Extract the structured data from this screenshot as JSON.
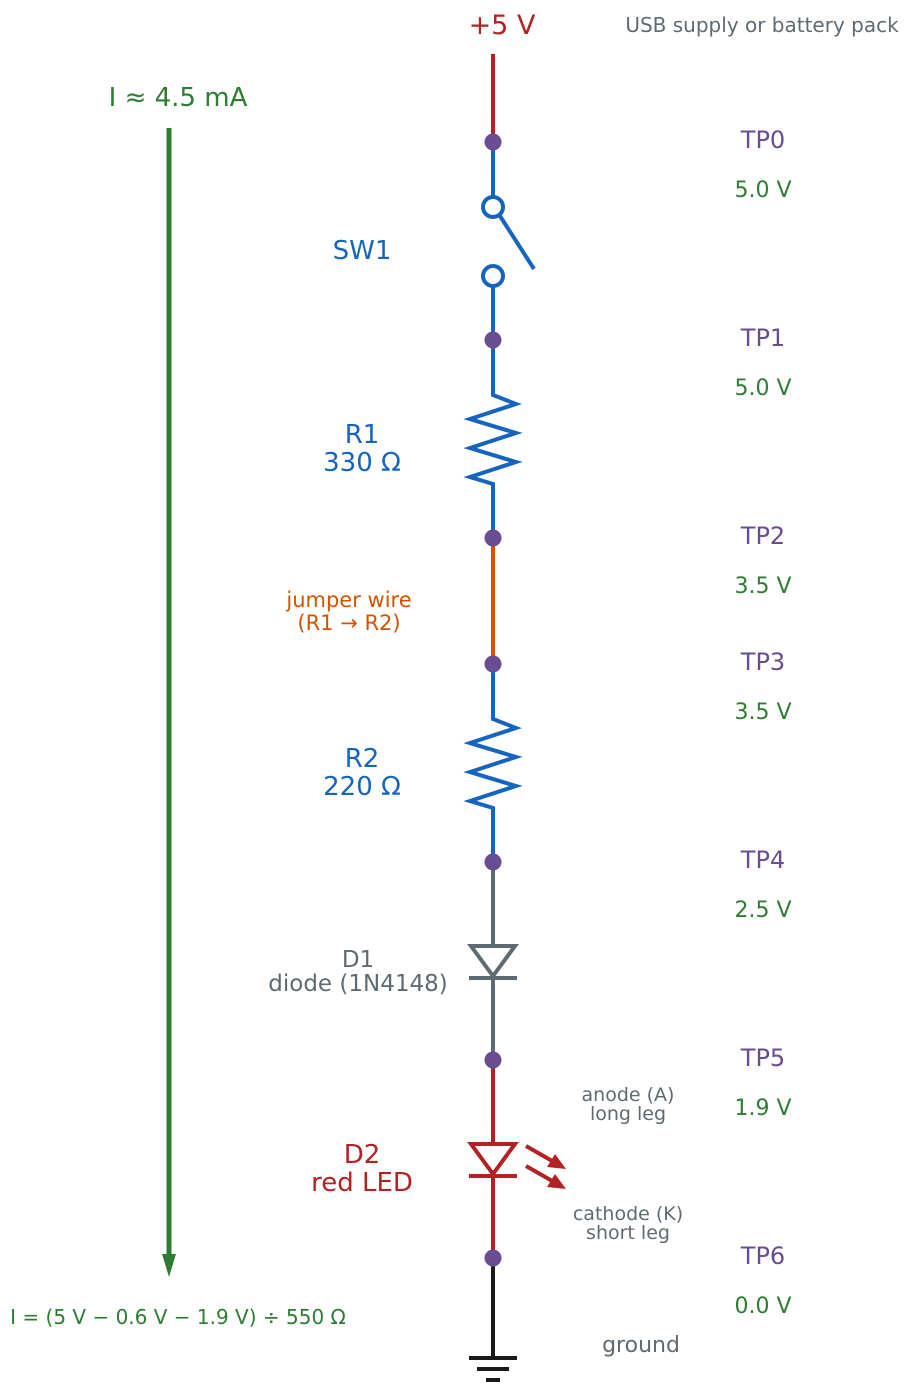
{
  "supply": {
    "label": "+5 V",
    "note": "USB supply or battery pack"
  },
  "current": {
    "label": "I ≈ 4.5 mA",
    "formula": "I = (5 V − 0.6 V − 1.9 V) ÷ 550 Ω"
  },
  "components": {
    "sw1": {
      "name": "SW1"
    },
    "r1": {
      "name": "R1",
      "value": "330 Ω"
    },
    "jumper": {
      "line1": "jumper wire",
      "line2": "(R1 → R2)"
    },
    "r2": {
      "name": "R2",
      "value": "220 Ω"
    },
    "d1": {
      "name": "D1",
      "desc": "diode (1N4148)"
    },
    "d2": {
      "name": "D2",
      "desc": "red LED",
      "anode_line1": "anode (A)",
      "anode_line2": "long leg",
      "cathode_line1": "cathode (K)",
      "cathode_line2": "short leg"
    }
  },
  "test_points": [
    {
      "name": "TP0",
      "voltage": "5.0 V"
    },
    {
      "name": "TP1",
      "voltage": "5.0 V"
    },
    {
      "name": "TP2",
      "voltage": "3.5 V"
    },
    {
      "name": "TP3",
      "voltage": "3.5 V"
    },
    {
      "name": "TP4",
      "voltage": "2.5 V"
    },
    {
      "name": "TP5",
      "voltage": "1.9 V"
    },
    {
      "name": "TP6",
      "voltage": "0.0 V"
    }
  ],
  "ground": {
    "label": "ground"
  },
  "colors": {
    "supply_red": "#b22222",
    "component_blue": "#1565c0",
    "jumper_orange": "#d35400",
    "diode_gray": "#5f6b73",
    "current_green": "#2e7d32",
    "testpoint_purple": "#6a4c93",
    "ground_black": "#1a1a1a",
    "note_gray": "#5f6b73"
  }
}
